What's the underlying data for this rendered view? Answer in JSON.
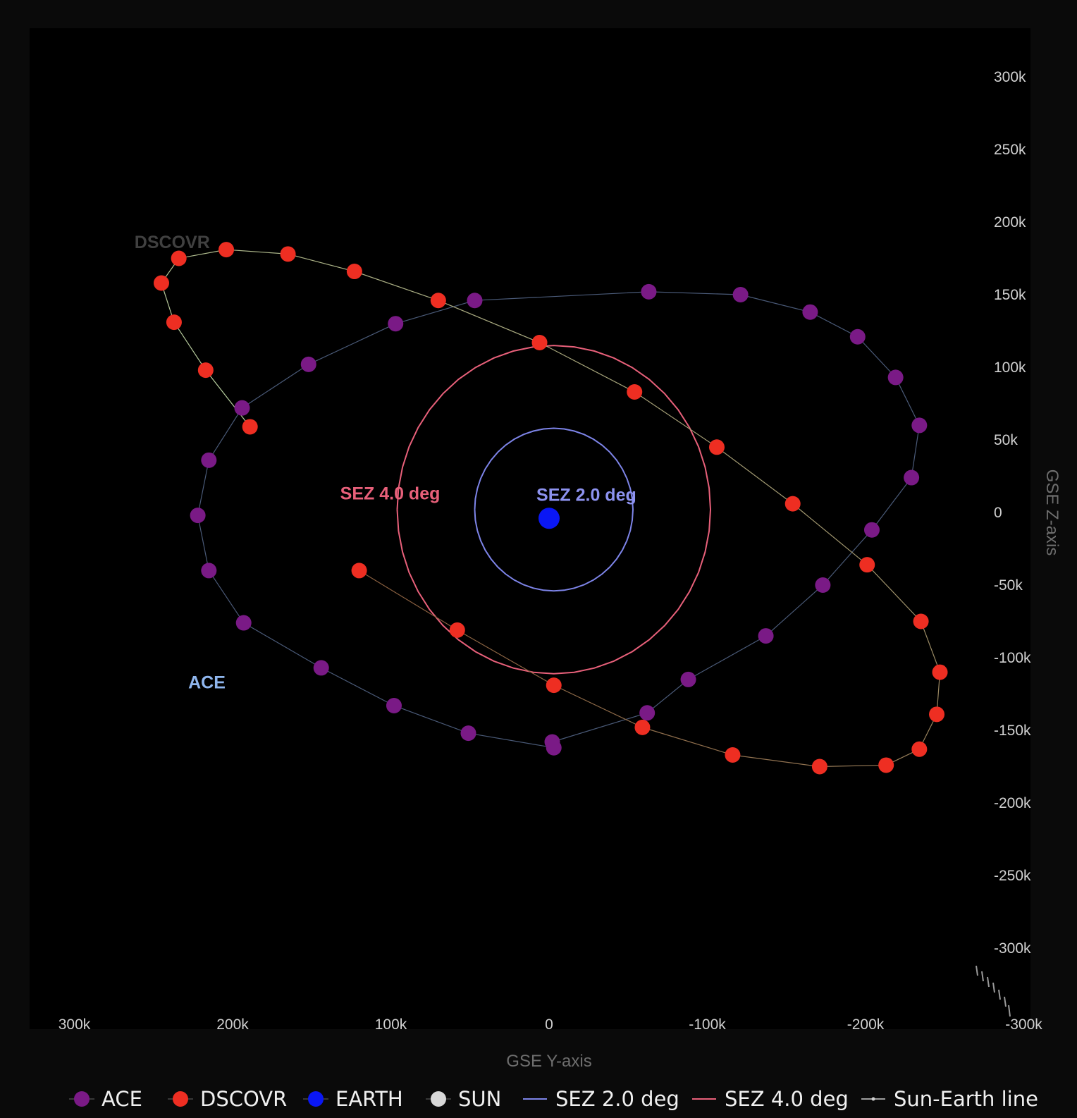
{
  "chart_data": {
    "type": "scatter",
    "xlabel": "GSE Y-axis",
    "ylabel": "GSE Z-axis",
    "xlim": [
      300000,
      -300000
    ],
    "ylim": [
      -340000,
      320000
    ],
    "x_ticks": [
      300000,
      200000,
      100000,
      0,
      -100000,
      -200000,
      -300000
    ],
    "x_tick_labels": [
      "300k",
      "200k",
      "100k",
      "0",
      "-100k",
      "-200k",
      "-300k"
    ],
    "y_ticks": [
      300000,
      250000,
      200000,
      150000,
      100000,
      50000,
      0,
      -50000,
      -100000,
      -150000,
      -200000,
      -250000,
      -300000
    ],
    "y_tick_labels": [
      "300k",
      "250k",
      "200k",
      "150k",
      "100k",
      "50k",
      "0",
      "-50k",
      "-100k",
      "-150k",
      "-200k",
      "-250k",
      "-300k"
    ],
    "grid": false,
    "legend_position": "bottom",
    "series": [
      {
        "name": "ACE",
        "color": "#7a1a86",
        "line_color": "#4a5a78",
        "x": [
          -2000,
          -62000,
          -88000,
          -137000,
          -173000,
          -204000,
          -229000,
          -234000,
          -219000,
          -195000,
          -165000,
          -121000,
          -63000,
          47000,
          97000,
          152000,
          194000,
          215000,
          222000,
          215000,
          193000,
          144000,
          98000,
          51000,
          -3000
        ],
        "y": [
          -158000,
          -138000,
          -115000,
          -85000,
          -50000,
          -12000,
          24000,
          60000,
          93000,
          121000,
          138000,
          150000,
          152000,
          146000,
          130000,
          102000,
          72000,
          36000,
          -2000,
          -40000,
          -76000,
          -107000,
          -133000,
          -152000,
          -162000
        ]
      },
      {
        "name": "DSCOVR",
        "color": "#ee2e22",
        "line_color_start": "#8a6040",
        "line_color_end": "#b8d0a0",
        "x": [
          120000,
          58000,
          -3000,
          -59000,
          -116000,
          -171000,
          -213000,
          -234000,
          -245000,
          -247000,
          -235000,
          -201000,
          -154000,
          -106000,
          -54000,
          6000,
          70000,
          123000,
          165000,
          204000,
          234000,
          245000,
          237000,
          217000,
          189000
        ],
        "y": [
          -40000,
          -81000,
          -119000,
          -148000,
          -167000,
          -175000,
          -174000,
          -163000,
          -139000,
          -110000,
          -75000,
          -36000,
          6000,
          45000,
          83000,
          117000,
          146000,
          166000,
          178000,
          181000,
          175000,
          158000,
          131000,
          98000,
          59000
        ]
      },
      {
        "name": "EARTH",
        "color": "#0a17f5",
        "x": [
          0
        ],
        "y": [
          -4000
        ]
      },
      {
        "name": "SUN",
        "color": "#d8d8d8",
        "x": [],
        "y": []
      },
      {
        "name": "SEZ 2.0 deg",
        "color": "#7d84e8",
        "center": [
          -3000,
          2000
        ],
        "radius_y": 50000,
        "radius_z": 56000
      },
      {
        "name": "SEZ 4.0 deg",
        "color": "#e8607a",
        "center": [
          -3000,
          2000
        ],
        "radius_y": 99000,
        "radius_z": 113000
      },
      {
        "name": "Sun-Earth line",
        "color": "#d0d0d0"
      }
    ],
    "annotations": [
      {
        "text": "DSCOVR",
        "x": 262000,
        "y": 182000,
        "color": "#404040"
      },
      {
        "text": "ACE",
        "x": 228000,
        "y": -121000,
        "color": "#8fb6ee"
      },
      {
        "text": "SEZ 4.0 deg",
        "x": 132000,
        "y": 9000,
        "color": "#e8607a"
      },
      {
        "text": "SEZ 2.0 deg",
        "x": 8000,
        "y": 8000,
        "color": "#8d92ef"
      }
    ]
  }
}
